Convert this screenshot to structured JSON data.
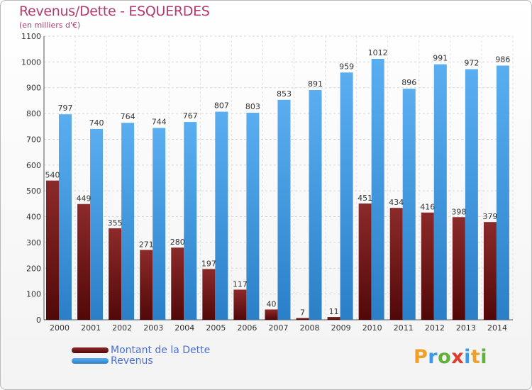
{
  "header": {
    "title": "Revenus/Dette - ESQUERDES",
    "subtitle": "(en milliers d'€)"
  },
  "legend": {
    "items": [
      {
        "label": "Montant de la Dette",
        "color": "#7a1a1a"
      },
      {
        "label": "Revenus",
        "color": "#3d9ae8"
      }
    ]
  },
  "logo": {
    "letters": [
      {
        "char": "P",
        "color": "#f0a02a"
      },
      {
        "char": "r",
        "color": "#3d9ae8"
      },
      {
        "char": "o",
        "color": "#5fb33a"
      },
      {
        "char": "x",
        "color": "#e23b2e"
      },
      {
        "char": "i",
        "color": "#3d9ae8"
      },
      {
        "char": "t",
        "color": "#f0a02a"
      },
      {
        "char": "i",
        "color": "#5fb33a"
      }
    ]
  },
  "chart_data": {
    "type": "bar",
    "title": "Revenus/Dette - ESQUERDES",
    "subtitle": "(en milliers d'€)",
    "categories": [
      "2000",
      "2001",
      "2002",
      "2003",
      "2004",
      "2005",
      "2006",
      "2007",
      "2008",
      "2009",
      "2010",
      "2011",
      "2012",
      "2013",
      "2014"
    ],
    "series": [
      {
        "name": "Montant de la Dette",
        "color": "#7a1a1a",
        "values": [
          540,
          449,
          355,
          271,
          280,
          197,
          117,
          40,
          7,
          11,
          451,
          434,
          416,
          398,
          379
        ]
      },
      {
        "name": "Revenus",
        "color": "#3d9ae8",
        "values": [
          797,
          740,
          764,
          744,
          767,
          807,
          803,
          853,
          891,
          959,
          1012,
          896,
          991,
          972,
          986
        ]
      }
    ],
    "ylim": [
      0,
      1100
    ],
    "yticks": [
      0,
      100,
      200,
      300,
      400,
      500,
      600,
      700,
      800,
      900,
      1000,
      1100
    ],
    "grid": true,
    "legend_position": "bottom-left"
  }
}
